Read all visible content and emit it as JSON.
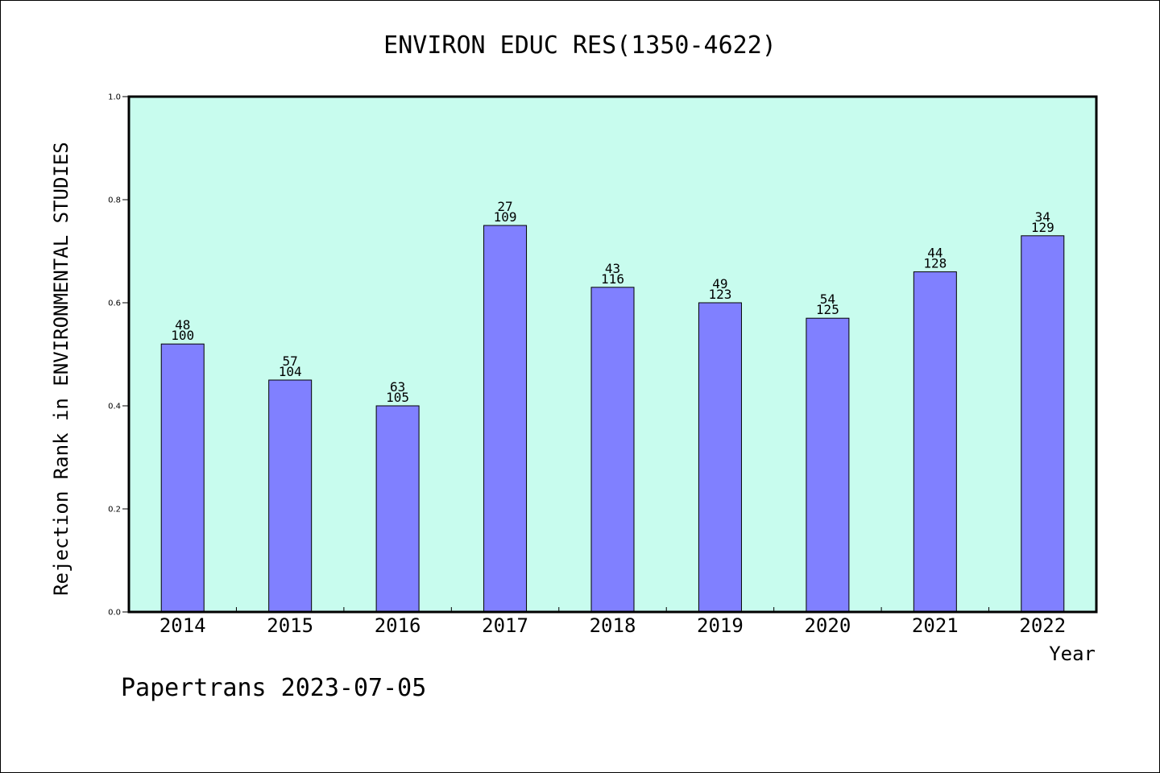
{
  "chart_data": {
    "type": "bar",
    "title": "ENVIRON EDUC RES(1350-4622)",
    "xlabel": "Year",
    "ylabel": "Rejection Rank in ENVIRONMENTAL STUDIES",
    "ylim": [
      0,
      1.0
    ],
    "yticks": [
      "0.0",
      "0.2",
      "0.4",
      "0.6",
      "0.8",
      "1.0"
    ],
    "categories": [
      "2014",
      "2015",
      "2016",
      "2017",
      "2018",
      "2019",
      "2020",
      "2021",
      "2022"
    ],
    "values": [
      0.52,
      0.45,
      0.4,
      0.75,
      0.63,
      0.6,
      0.57,
      0.66,
      0.73
    ],
    "label_top": [
      "48",
      "57",
      "63",
      "27",
      "43",
      "49",
      "54",
      "44",
      "34"
    ],
    "label_bottom": [
      "100",
      "104",
      "105",
      "109",
      "116",
      "123",
      "125",
      "128",
      "129"
    ],
    "grid": false,
    "colors": {
      "plot_background": "#c8fcee",
      "bar": "#8080ff",
      "bar_edge": "#000000"
    }
  },
  "footer": "Papertrans 2023-07-05"
}
